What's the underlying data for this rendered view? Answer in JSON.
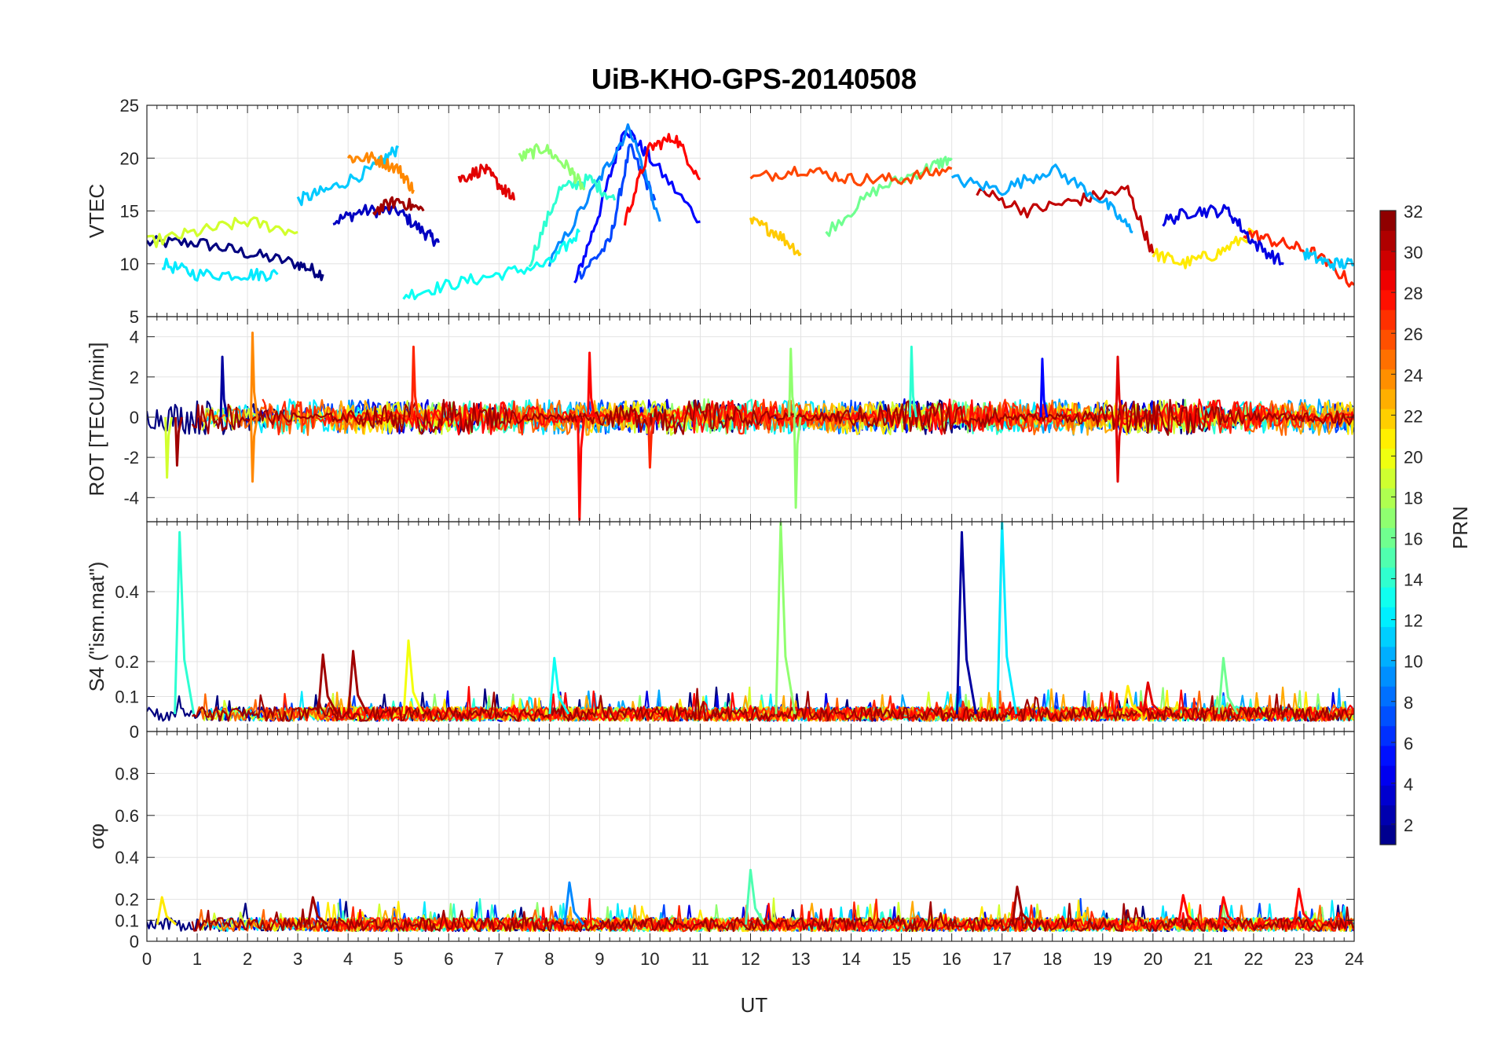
{
  "colors": {
    "background": "#ffffff",
    "axis": "#262626",
    "grid": "#e3e3e3",
    "colormap": "jet"
  },
  "chart_data": {
    "type": "line",
    "title": "UiB-KHO-GPS-20140508",
    "xlabel": "UT",
    "xlim": [
      0,
      24
    ],
    "x_ticks": [
      "0",
      "1",
      "2",
      "3",
      "4",
      "5",
      "6",
      "7",
      "8",
      "9",
      "10",
      "11",
      "12",
      "13",
      "14",
      "15",
      "16",
      "17",
      "18",
      "19",
      "20",
      "21",
      "22",
      "23",
      "24"
    ],
    "colorbar": {
      "label": "PRN",
      "range": [
        1,
        32
      ],
      "ticks": [
        "2",
        "4",
        "6",
        "8",
        "10",
        "12",
        "14",
        "16",
        "18",
        "20",
        "22",
        "24",
        "26",
        "28",
        "30",
        "32"
      ]
    },
    "panels": [
      {
        "key": "vtec",
        "ylabel": "VTEC",
        "ylim": [
          5,
          25
        ],
        "y_ticks": [
          {
            "v": 5,
            "t": "5"
          },
          {
            "v": 10,
            "t": "10"
          },
          {
            "v": 15,
            "t": "15"
          },
          {
            "v": 20,
            "t": "20"
          },
          {
            "v": 25,
            "t": "25"
          }
        ],
        "series": [
          {
            "prn": 1,
            "x": [
              0,
              1,
              2,
              3,
              3.5
            ],
            "y": [
              12,
              12,
              11,
              10,
              9
            ]
          },
          {
            "prn": 3,
            "x": [
              3.7,
              4.3,
              5,
              5.5,
              5.8
            ],
            "y": [
              14,
              15,
              15,
              13,
              12
            ]
          },
          {
            "prn": 5,
            "x": [
              8.5,
              9,
              9.5,
              10,
              11
            ],
            "y": [
              8,
              15,
              23,
              20,
              14
            ]
          },
          {
            "prn": 7,
            "x": [
              8.6,
              9.2,
              9.6,
              10.1
            ],
            "y": [
              9,
              12,
              21,
              16
            ]
          },
          {
            "prn": 9,
            "x": [
              8,
              9,
              9.6,
              10.2
            ],
            "y": [
              10,
              18,
              23,
              14
            ]
          },
          {
            "prn": 11,
            "x": [
              3,
              3.6,
              4.5,
              5
            ],
            "y": [
              16,
              17,
              19,
              21
            ]
          },
          {
            "prn": 12,
            "x": [
              0.3,
              1,
              2,
              2.6
            ],
            "y": [
              10,
              9,
              9,
              9
            ]
          },
          {
            "prn": 13,
            "x": [
              5.1,
              6,
              7,
              8,
              8.6
            ],
            "y": [
              7,
              8,
              9,
              10,
              13
            ]
          },
          {
            "prn": 14,
            "x": [
              7.6,
              8.2,
              8.8,
              9.3
            ],
            "y": [
              10,
              17,
              18,
              16
            ]
          },
          {
            "prn": 16,
            "x": [
              13.5,
              14.5,
              15.5,
              16
            ],
            "y": [
              13,
              17,
              19,
              20
            ]
          },
          {
            "prn": 17,
            "x": [
              7.4,
              7.9,
              8.4,
              8.7
            ],
            "y": [
              20,
              21,
              19,
              17
            ]
          },
          {
            "prn": 19,
            "x": [
              0,
              1,
              2,
              3
            ],
            "y": [
              12,
              13,
              14,
              13
            ]
          },
          {
            "prn": 21,
            "x": [
              20,
              20.6,
              21.3,
              22
            ],
            "y": [
              11,
              10,
              11,
              13
            ]
          },
          {
            "prn": 22,
            "x": [
              12,
              12.5,
              13
            ],
            "y": [
              14,
              13,
              11
            ]
          },
          {
            "prn": 24,
            "x": [
              4,
              4.5,
              5,
              5.3
            ],
            "y": [
              20,
              20,
              19,
              17
            ]
          },
          {
            "prn": 26,
            "x": [
              12,
              13,
              14,
              15,
              16
            ],
            "y": [
              18,
              19,
              18,
              18,
              19
            ]
          },
          {
            "prn": 28,
            "x": [
              9.5,
              10,
              10.5,
              11
            ],
            "y": [
              14,
              21,
              22,
              18
            ]
          },
          {
            "prn": 29,
            "x": [
              6.2,
              6.7,
              7.1,
              7.3
            ],
            "y": [
              18,
              19,
              17,
              16
            ]
          },
          {
            "prn": 31,
            "x": [
              4.5,
              5,
              5.5
            ],
            "y": [
              15,
              16,
              15
            ]
          },
          {
            "prn": 30,
            "x": [
              16.5,
              17.5,
              18.5,
              19.5,
              20
            ],
            "y": [
              17,
              15,
              16,
              17,
              11
            ]
          },
          {
            "prn": 10,
            "x": [
              16,
              17,
              18,
              19,
              19.6
            ],
            "y": [
              18,
              17,
              19,
              16,
              13
            ]
          },
          {
            "prn": 27,
            "x": [
              21.8,
              22.5,
              23.2,
              24
            ],
            "y": [
              13,
              12,
              11,
              8
            ]
          },
          {
            "prn": 4,
            "x": [
              20.2,
              20.8,
              21.5,
              22,
              22.6
            ],
            "y": [
              14,
              15,
              15,
              12,
              10
            ]
          },
          {
            "prn": 11,
            "x": [
              23,
              23.5,
              24
            ],
            "y": [
              11,
              10,
              10
            ]
          }
        ]
      },
      {
        "key": "rot",
        "ylabel": "ROT [TECU/min]",
        "ylim": [
          -5.2,
          5
        ],
        "y_ticks": [
          {
            "v": -4,
            "t": "-4"
          },
          {
            "v": -2,
            "t": "-2"
          },
          {
            "v": 0,
            "t": "0"
          },
          {
            "v": 2,
            "t": "2"
          },
          {
            "v": 4,
            "t": "4"
          }
        ],
        "spikes": [
          {
            "prn": 24,
            "x": 2.1,
            "y": 4.2
          },
          {
            "prn": 24,
            "x": 2.1,
            "y": -3.2
          },
          {
            "prn": 27,
            "x": 5.3,
            "y": 3.5
          },
          {
            "prn": 28,
            "x": 8.6,
            "y": -5.1
          },
          {
            "prn": 28,
            "x": 8.8,
            "y": 3.2
          },
          {
            "prn": 17,
            "x": 12.8,
            "y": 3.4
          },
          {
            "prn": 17,
            "x": 12.9,
            "y": -4.5
          },
          {
            "prn": 14,
            "x": 15.2,
            "y": 3.5
          },
          {
            "prn": 29,
            "x": 19.3,
            "y": 3.0
          },
          {
            "prn": 29,
            "x": 19.3,
            "y": -3.2
          },
          {
            "prn": 5,
            "x": 17.8,
            "y": 2.9
          },
          {
            "prn": 2,
            "x": 1.5,
            "y": 3.0
          },
          {
            "prn": 19,
            "x": 0.4,
            "y": -3.0
          },
          {
            "prn": 31,
            "x": 0.6,
            "y": -2.4
          },
          {
            "prn": 27,
            "x": 10,
            "y": -2.5
          }
        ],
        "amplitude": 0.9
      },
      {
        "key": "s4",
        "ylabel": "S4 (\"ism.mat\")",
        "ylim": [
          0,
          0.6
        ],
        "y_ticks": [
          {
            "v": 0,
            "t": "0"
          },
          {
            "v": 0.1,
            "t": "0.1"
          },
          {
            "v": 0.2,
            "t": "0.2"
          },
          {
            "v": 0.4,
            "t": "0.4"
          }
        ],
        "spikes": [
          {
            "prn": 14,
            "x": 0.65,
            "y": 0.57
          },
          {
            "prn": 31,
            "x": 3.5,
            "y": 0.22
          },
          {
            "prn": 31,
            "x": 4.1,
            "y": 0.23
          },
          {
            "prn": 20,
            "x": 5.2,
            "y": 0.26
          },
          {
            "prn": 13,
            "x": 8.1,
            "y": 0.21
          },
          {
            "prn": 17,
            "x": 12.6,
            "y": 0.6
          },
          {
            "prn": 2,
            "x": 16.2,
            "y": 0.57
          },
          {
            "prn": 12,
            "x": 17.0,
            "y": 0.6
          },
          {
            "prn": 29,
            "x": 19.9,
            "y": 0.14
          },
          {
            "prn": 16,
            "x": 21.4,
            "y": 0.21
          },
          {
            "prn": 21,
            "x": 19.5,
            "y": 0.13
          }
        ],
        "baseline": 0.05
      },
      {
        "key": "sigma",
        "ylabel": "σφ",
        "ylim": [
          0,
          1
        ],
        "y_ticks": [
          {
            "v": 0,
            "t": "0"
          },
          {
            "v": 0.1,
            "t": "0.1"
          },
          {
            "v": 0.2,
            "t": "0.2"
          },
          {
            "v": 0.4,
            "t": "0.4"
          },
          {
            "v": 0.6,
            "t": "0.6"
          },
          {
            "v": 0.8,
            "t": "0.8"
          }
        ],
        "spikes": [
          {
            "prn": 9,
            "x": 8.4,
            "y": 0.28
          },
          {
            "prn": 15,
            "x": 12.0,
            "y": 0.34
          },
          {
            "prn": 31,
            "x": 17.3,
            "y": 0.26
          },
          {
            "prn": 28,
            "x": 22.9,
            "y": 0.25
          },
          {
            "prn": 28,
            "x": 20.6,
            "y": 0.22
          },
          {
            "prn": 28,
            "x": 21.4,
            "y": 0.21
          },
          {
            "prn": 31,
            "x": 3.3,
            "y": 0.21
          },
          {
            "prn": 21,
            "x": 0.3,
            "y": 0.21
          }
        ],
        "baseline": 0.08
      }
    ]
  }
}
